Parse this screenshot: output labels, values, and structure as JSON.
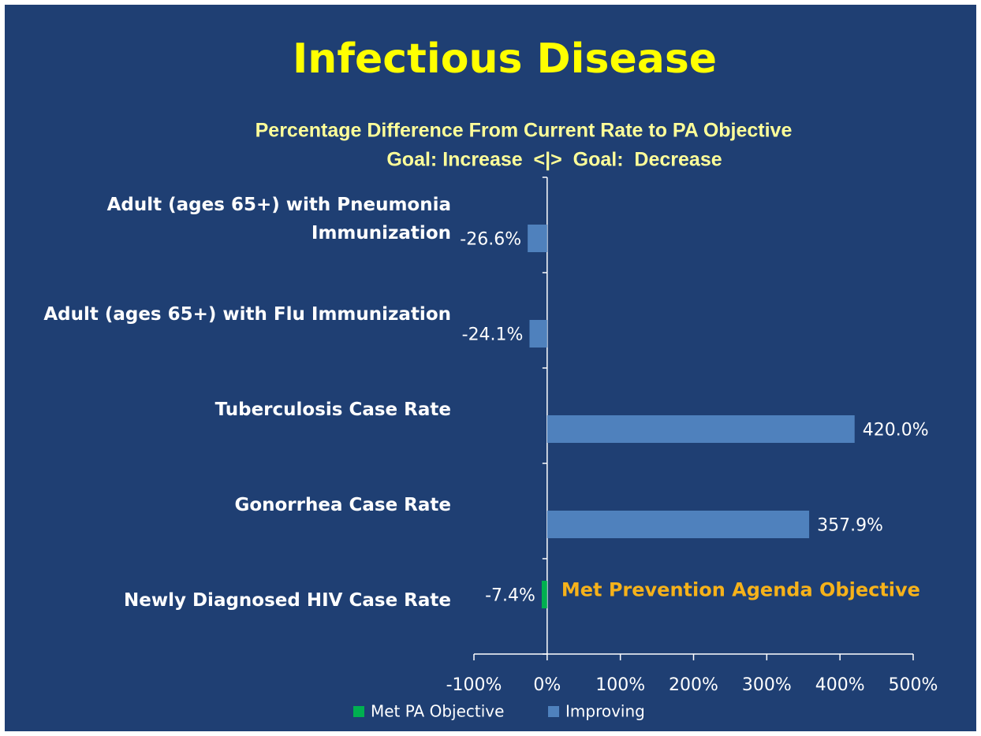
{
  "chart_data": {
    "type": "bar",
    "orientation": "horizontal",
    "title": "Infectious Disease",
    "subtitle": [
      "Percentage Difference From Current Rate to PA Objective",
      "Goal: Increase  <|>  Goal:  Decrease"
    ],
    "annotation": "Met Prevention Agenda Objective",
    "categories": [
      "Adult (ages 65+) with Pneumonia Immunization",
      "Adult (ages 65+) with Flu Immunization",
      "Tuberculosis Case Rate",
      "Gonorrhea Case Rate",
      "Newly Diagnosed HIV Case Rate"
    ],
    "series": [
      {
        "name": "Met PA Objective",
        "color": "#00b050",
        "values": [
          null,
          null,
          null,
          null,
          -7.4
        ],
        "value_labels": [
          null,
          null,
          null,
          null,
          "-7.4%"
        ]
      },
      {
        "name": "Improving",
        "color": "#4f81bd",
        "values": [
          -26.6,
          -24.1,
          420.0,
          357.9,
          null
        ],
        "value_labels": [
          "-26.6%",
          "-24.1%",
          "420.0%",
          "357.9%",
          null
        ]
      }
    ],
    "xlim": [
      -100,
      500
    ],
    "xticks": [
      {
        "value": -100,
        "label": "-100%"
      },
      {
        "value": 0,
        "label": "0%"
      },
      {
        "value": 100,
        "label": "100%"
      },
      {
        "value": 200,
        "label": "200%"
      },
      {
        "value": 300,
        "label": "300%"
      },
      {
        "value": 400,
        "label": "400%"
      },
      {
        "value": 500,
        "label": "500%"
      }
    ],
    "legend": "bottom"
  }
}
